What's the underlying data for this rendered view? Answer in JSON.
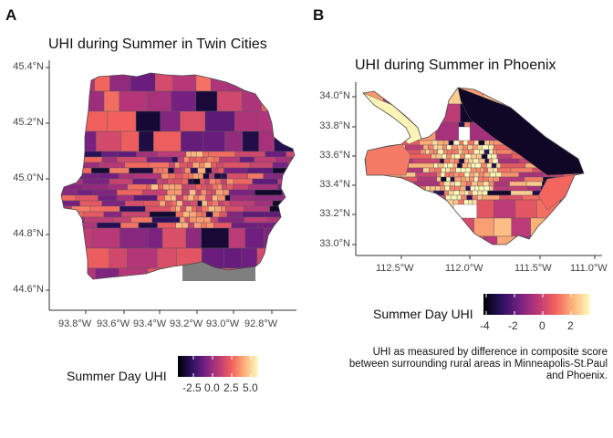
{
  "panels": [
    {
      "letter": "A",
      "title": "UHI during Summer in Twin Cities",
      "y_ticks": [
        "45.4°N",
        "45.2°N",
        "45.0°N",
        "44.8°N",
        "44.6°N"
      ],
      "x_ticks": [
        "93.8°W",
        "93.6°W",
        "93.4°W",
        "93.2°W",
        "93.0°W",
        "92.8°W"
      ],
      "legend_title": "Summer Day UHI",
      "colorbar_ticks": [
        "-2.5",
        "0.0",
        "2.5",
        "5.0"
      ],
      "colorbar_range": [
        -4.2,
        6.2
      ]
    },
    {
      "letter": "B",
      "title": "UHI during Summer in Phoenix",
      "y_ticks": [
        "34.0°N",
        "33.8°N",
        "33.6°N",
        "33.4°N",
        "33.2°N",
        "33.0°N"
      ],
      "x_ticks": [
        "112.5°W",
        "112.0°W",
        "111.5°W",
        "111.0°W"
      ],
      "legend_title": "Summer Day UHI",
      "colorbar_ticks": [
        "-4",
        "-2",
        "0",
        "2"
      ],
      "colorbar_range": [
        -4.2,
        3.2
      ]
    }
  ],
  "caption": [
    "UHI as measured by difference in composite score",
    "between surrounding rural areas in Minneapolis-St.Paul",
    "and Phoenix."
  ],
  "colors": {
    "palette": [
      "#000004",
      "#2c115f",
      "#721f81",
      "#b73779",
      "#f1605d",
      "#feb078",
      "#fcfdbf"
    ],
    "na_fill": "#7f7f7f",
    "tract_border": "#5a5a5a"
  }
}
